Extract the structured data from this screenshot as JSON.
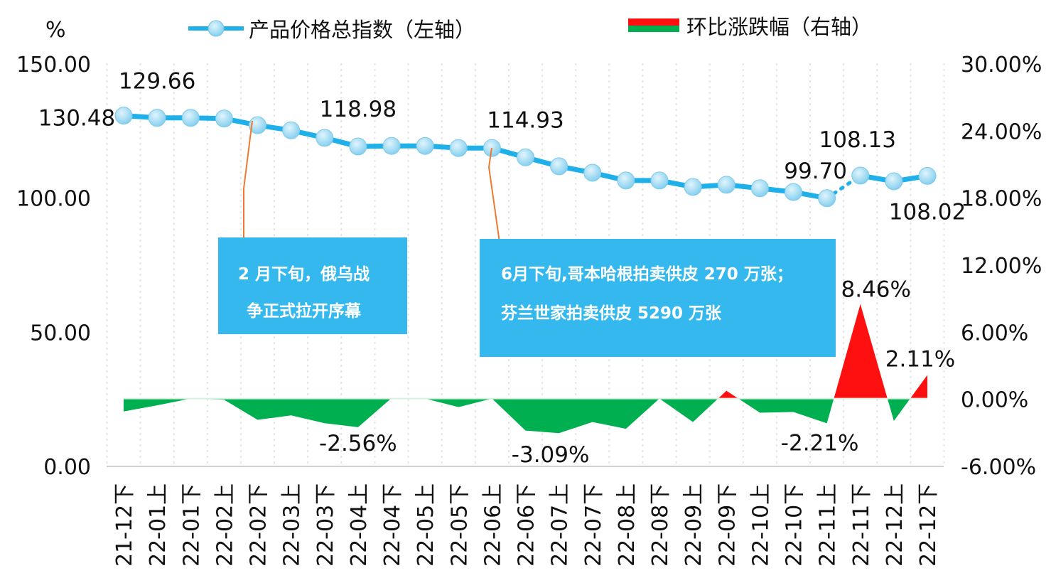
{
  "chart_data": {
    "type": "line+area",
    "left_axis_unit": "%",
    "left_ylim": [
      0,
      150
    ],
    "left_ticks": [
      "0.00",
      "50.00",
      "100.00",
      "150.00"
    ],
    "right_ylim": [
      -6,
      30
    ],
    "right_ticks": [
      "-6.00%",
      "0.00%",
      "6.00%",
      "12.00%",
      "18.00%",
      "24.00%",
      "30.00%"
    ],
    "categories": [
      "21-12下",
      "22-01上",
      "22-01下",
      "22-02上",
      "22-02下",
      "22-03上",
      "22-03下",
      "22-04上",
      "22-04下",
      "22-05上",
      "22-05下",
      "22-06上",
      "22-06下",
      "22-07上",
      "22-07下",
      "22-08上",
      "22-08下",
      "22-09上",
      "22-09下",
      "22-10上",
      "22-10下",
      "22-11上",
      "22-11下",
      "22-12上",
      "22-12下"
    ],
    "legend": [
      {
        "name": "产品价格总指数（左轴）",
        "color": "#1fb0ea"
      },
      {
        "name": "环比涨跌幅（右轴）",
        "color_up": "#ff1010",
        "color_down": "#00b050"
      }
    ],
    "series": [
      {
        "name": "产品价格总指数（左轴）",
        "axis": "left",
        "values": [
          130.48,
          129.66,
          129.66,
          129.4,
          126.9,
          125.0,
          122.2,
          118.98,
          119.2,
          119.2,
          118.4,
          118.4,
          114.93,
          111.6,
          109.2,
          106.3,
          106.3,
          103.9,
          104.7,
          103.4,
          102.0,
          99.7,
          108.13,
          106.0,
          108.02
        ],
        "labels": {
          "0": "130.48",
          "1": "129.66",
          "7": "118.98",
          "12": "114.93",
          "21": "99.70",
          "22": "108.13",
          "24": "108.02"
        }
      },
      {
        "name": "环比涨跌幅（右轴）",
        "axis": "right",
        "values": [
          -1.15,
          -0.6,
          0.0,
          -0.1,
          -1.9,
          -1.5,
          -2.2,
          -2.56,
          0.05,
          0.0,
          -0.76,
          0.0,
          -2.86,
          -3.09,
          -2.1,
          -2.7,
          0.0,
          -2.1,
          0.7,
          -1.26,
          -1.2,
          -2.21,
          8.46,
          -2.0,
          2.11
        ],
        "labels": {
          "7": "-2.56%",
          "13": "-3.09%",
          "21": "-2.21%",
          "22": "8.46%",
          "24": "2.11%"
        }
      }
    ],
    "annotations": [
      {
        "lines": [
          "2 月下旬，俄乌战",
          "争正式拉开序幕"
        ],
        "category": "22-02下"
      },
      {
        "lines": [
          "6月下旬,哥本哈根拍卖供皮 270 万张；",
          "芬兰世家拍卖供皮 5290 万张"
        ],
        "category": "22-06上"
      }
    ],
    "grid": "vertical dotted",
    "legend_placement": "top"
  }
}
